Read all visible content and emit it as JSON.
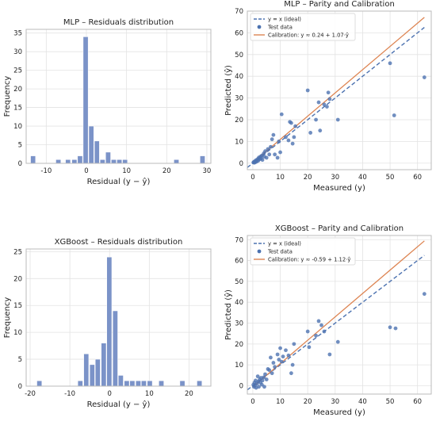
{
  "chart_data": [
    {
      "type": "bar",
      "title": "MLP – Residuals distribution",
      "xlabel": "Residual (y − ŷ)",
      "ylabel": "Frequency",
      "xlim": [
        -15,
        31
      ],
      "ylim": [
        0,
        36
      ],
      "xticks": [
        -10,
        0,
        10,
        20,
        30
      ],
      "yticks": [
        0,
        5,
        10,
        15,
        20,
        25,
        30,
        35
      ],
      "grid": true,
      "bin_width": 1.43,
      "bins": [
        {
          "x0": -13.9,
          "count": 2
        },
        {
          "x0": -7.6,
          "count": 1
        },
        {
          "x0": -5.2,
          "count": 1
        },
        {
          "x0": -3.6,
          "count": 1
        },
        {
          "x0": -2.2,
          "count": 2
        },
        {
          "x0": -0.8,
          "count": 34
        },
        {
          "x0": 0.6,
          "count": 10
        },
        {
          "x0": 2.0,
          "count": 6
        },
        {
          "x0": 3.4,
          "count": 1
        },
        {
          "x0": 4.8,
          "count": 3
        },
        {
          "x0": 6.2,
          "count": 1
        },
        {
          "x0": 7.6,
          "count": 1
        },
        {
          "x0": 9.0,
          "count": 1
        },
        {
          "x0": 21.8,
          "count": 1
        },
        {
          "x0": 28.3,
          "count": 2
        }
      ]
    },
    {
      "type": "scatter",
      "title": "MLP – Parity and Calibration",
      "xlabel": "Measured (y)",
      "ylabel": "Predicted (ŷ)",
      "xlim": [
        -2,
        65
      ],
      "ylim": [
        -3,
        70
      ],
      "xticks": [
        0,
        10,
        20,
        30,
        40,
        50,
        60
      ],
      "yticks": [
        0,
        10,
        20,
        30,
        40,
        50,
        60,
        70
      ],
      "grid": true,
      "legend_position": "top-left",
      "legend": [
        "y = x (ideal)",
        "Test data",
        "Calibration: y ≈ 0.24 + 1.07·ŷ"
      ],
      "ideal_line": {
        "slope": 1,
        "intercept": 0
      },
      "calibration_line": {
        "slope": 1.07,
        "intercept": 0.24
      },
      "points": [
        [
          0.2,
          0.3
        ],
        [
          0.4,
          0.6
        ],
        [
          0.6,
          0.2
        ],
        [
          0.8,
          0.9
        ],
        [
          1.0,
          0.5
        ],
        [
          1.2,
          1.4
        ],
        [
          1.5,
          0.8
        ],
        [
          1.8,
          1.9
        ],
        [
          2.0,
          1.2
        ],
        [
          2.2,
          2.6
        ],
        [
          2.5,
          1.8
        ],
        [
          2.8,
          3.0
        ],
        [
          3.0,
          2.2
        ],
        [
          3.3,
          3.5
        ],
        [
          3.5,
          1.5
        ],
        [
          4.0,
          4.5
        ],
        [
          4.2,
          3.0
        ],
        [
          4.5,
          5.5
        ],
        [
          5.0,
          2.5
        ],
        [
          5.5,
          6.5
        ],
        [
          6.0,
          4.0
        ],
        [
          6.5,
          7.5
        ],
        [
          7.0,
          11.0
        ],
        [
          7.5,
          13.0
        ],
        [
          8.0,
          4.0
        ],
        [
          9.0,
          2.5
        ],
        [
          9.5,
          10.0
        ],
        [
          10.0,
          5.0
        ],
        [
          10.5,
          22.5
        ],
        [
          12.0,
          12.0
        ],
        [
          13.0,
          10.5
        ],
        [
          13.5,
          19.0
        ],
        [
          14.0,
          18.5
        ],
        [
          14.5,
          9.0
        ],
        [
          15.0,
          12.0
        ],
        [
          15.5,
          17.0
        ],
        [
          20.0,
          33.5
        ],
        [
          21.0,
          14.0
        ],
        [
          23.0,
          20.0
        ],
        [
          24.0,
          28.0
        ],
        [
          24.5,
          15.0
        ],
        [
          26.0,
          27.0
        ],
        [
          27.0,
          26.0
        ],
        [
          27.5,
          32.5
        ],
        [
          28.0,
          29.5
        ],
        [
          31.0,
          20.0
        ],
        [
          50.0,
          46.0
        ],
        [
          51.5,
          22.0
        ],
        [
          62.5,
          39.5
        ]
      ]
    },
    {
      "type": "bar",
      "title": "XGBoost – Residuals distribution",
      "xlabel": "Residual (y − ŷ)",
      "ylabel": "Frequency",
      "xlim": [
        -21,
        25.5
      ],
      "ylim": [
        0,
        25.5
      ],
      "xticks": [
        -20,
        -10,
        0,
        10,
        20
      ],
      "yticks": [
        0,
        5,
        10,
        15,
        20,
        25
      ],
      "grid": true,
      "bin_width": 1.45,
      "bins": [
        {
          "x0": -18.3,
          "count": 1
        },
        {
          "x0": -8.0,
          "count": 1
        },
        {
          "x0": -6.5,
          "count": 6
        },
        {
          "x0": -5.0,
          "count": 4
        },
        {
          "x0": -3.6,
          "count": 5
        },
        {
          "x0": -2.1,
          "count": 8
        },
        {
          "x0": -0.7,
          "count": 24
        },
        {
          "x0": 0.8,
          "count": 14
        },
        {
          "x0": 2.2,
          "count": 2
        },
        {
          "x0": 3.7,
          "count": 1
        },
        {
          "x0": 5.1,
          "count": 1
        },
        {
          "x0": 6.6,
          "count": 1
        },
        {
          "x0": 8.0,
          "count": 1
        },
        {
          "x0": 9.5,
          "count": 1
        },
        {
          "x0": 12.4,
          "count": 1
        },
        {
          "x0": 17.7,
          "count": 1
        },
        {
          "x0": 22.0,
          "count": 1
        }
      ]
    },
    {
      "type": "scatter",
      "title": "XGBoost – Parity and Calibration",
      "xlabel": "Measured (y)",
      "ylabel": "Predicted (ŷ)",
      "xlim": [
        -2,
        65
      ],
      "ylim": [
        -4,
        72
      ],
      "xticks": [
        0,
        10,
        20,
        30,
        40,
        50,
        60
      ],
      "yticks": [
        0,
        10,
        20,
        30,
        40,
        50,
        60,
        70
      ],
      "grid": true,
      "legend_position": "top-left",
      "legend": [
        "y = x (ideal)",
        "Test data",
        "Calibration: y ≈ -0.59 + 1.12·ŷ"
      ],
      "ideal_line": {
        "slope": 1,
        "intercept": 0
      },
      "calibration_line": {
        "slope": 1.12,
        "intercept": -0.59
      },
      "points": [
        [
          0.2,
          0.5
        ],
        [
          0.4,
          -0.5
        ],
        [
          0.6,
          1.5
        ],
        [
          0.8,
          0.2
        ],
        [
          1.0,
          2.5
        ],
        [
          1.2,
          -1.0
        ],
        [
          1.5,
          1.0
        ],
        [
          1.8,
          4.5
        ],
        [
          2.0,
          2.0
        ],
        [
          2.2,
          -0.5
        ],
        [
          2.5,
          3.0
        ],
        [
          2.8,
          1.5
        ],
        [
          3.0,
          3.8
        ],
        [
          3.3,
          0.5
        ],
        [
          3.5,
          2.5
        ],
        [
          4.0,
          4.0
        ],
        [
          4.2,
          -0.5
        ],
        [
          4.5,
          5.5
        ],
        [
          5.0,
          3.0
        ],
        [
          5.5,
          8.0
        ],
        [
          6.0,
          7.5
        ],
        [
          6.5,
          13.5
        ],
        [
          7.0,
          6.0
        ],
        [
          7.5,
          11.0
        ],
        [
          8.0,
          9.0
        ],
        [
          9.0,
          15.0
        ],
        [
          9.5,
          12.5
        ],
        [
          10.0,
          18.0
        ],
        [
          10.5,
          11.5
        ],
        [
          11.0,
          14.0
        ],
        [
          12.0,
          17.0
        ],
        [
          13.0,
          14.5
        ],
        [
          14.0,
          6.0
        ],
        [
          14.5,
          10.0
        ],
        [
          15.0,
          20.0
        ],
        [
          20.0,
          26.0
        ],
        [
          20.5,
          18.5
        ],
        [
          23.0,
          24.0
        ],
        [
          24.0,
          31.0
        ],
        [
          25.0,
          29.0
        ],
        [
          26.0,
          26.0
        ],
        [
          28.0,
          15.0
        ],
        [
          31.0,
          21.0
        ],
        [
          50.0,
          28.0
        ],
        [
          52.0,
          27.5
        ],
        [
          62.5,
          44.0
        ]
      ]
    }
  ]
}
